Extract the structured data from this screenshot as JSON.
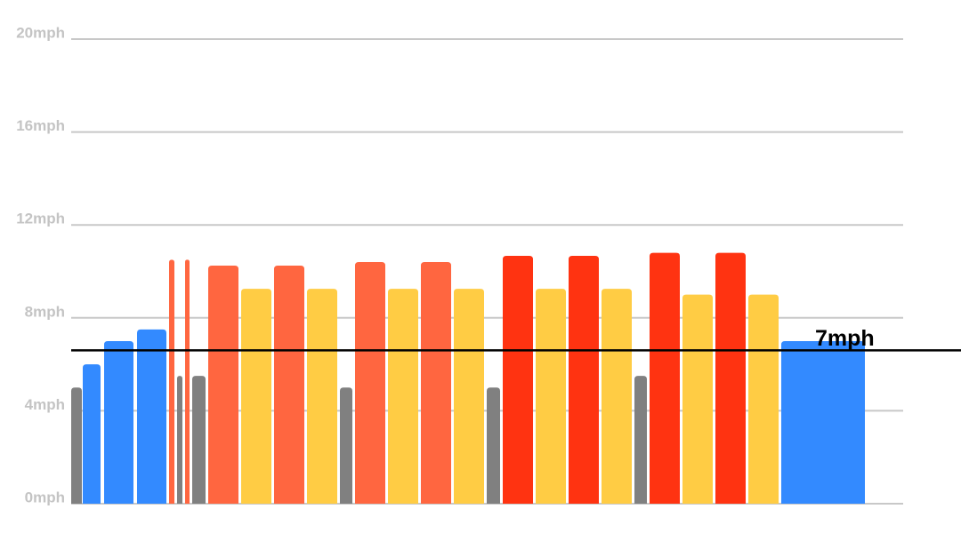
{
  "chart_data": {
    "type": "bar",
    "ylim": [
      0,
      20
    ],
    "yticks": [
      {
        "value": 0,
        "label": "0mph"
      },
      {
        "value": 4,
        "label": "4mph"
      },
      {
        "value": 8,
        "label": "8mph"
      },
      {
        "value": 12,
        "label": "12mph"
      },
      {
        "value": 16,
        "label": "16mph"
      },
      {
        "value": 20,
        "label": "20mph"
      }
    ],
    "xlim": [
      0,
      46.75
    ],
    "grid": true,
    "segments": [
      {
        "start": 0,
        "end": 0.6,
        "value": 5.0,
        "color": "#808080"
      },
      {
        "start": 0.65,
        "end": 1.65,
        "value": 6.0,
        "color": "#338aff"
      },
      {
        "start": 1.85,
        "end": 3.5,
        "value": 7.0,
        "color": "#338aff"
      },
      {
        "start": 3.7,
        "end": 5.35,
        "value": 7.5,
        "color": "#338aff"
      },
      {
        "start": 5.5,
        "end": 5.8,
        "value": 10.5,
        "color": "#ff6640"
      },
      {
        "start": 5.95,
        "end": 6.25,
        "value": 5.5,
        "color": "#808080"
      },
      {
        "start": 6.4,
        "end": 6.65,
        "value": 10.5,
        "color": "#ff6640"
      },
      {
        "start": 6.8,
        "end": 7.55,
        "value": 5.5,
        "color": "#808080"
      },
      {
        "start": 7.7,
        "end": 9.4,
        "value": 10.25,
        "color": "#ff6640"
      },
      {
        "start": 9.55,
        "end": 11.25,
        "value": 9.25,
        "color": "#ffcc44"
      },
      {
        "start": 11.4,
        "end": 13.1,
        "value": 10.25,
        "color": "#ff6640"
      },
      {
        "start": 13.25,
        "end": 14.95,
        "value": 9.25,
        "color": "#ffcc44"
      },
      {
        "start": 15.1,
        "end": 15.8,
        "value": 5.0,
        "color": "#808080"
      },
      {
        "start": 15.95,
        "end": 17.65,
        "value": 10.4,
        "color": "#ff6640"
      },
      {
        "start": 17.8,
        "end": 19.5,
        "value": 9.25,
        "color": "#ffcc44"
      },
      {
        "start": 19.65,
        "end": 21.35,
        "value": 10.4,
        "color": "#ff6640"
      },
      {
        "start": 21.5,
        "end": 23.2,
        "value": 9.25,
        "color": "#ffcc44"
      },
      {
        "start": 23.35,
        "end": 24.1,
        "value": 5.0,
        "color": "#808080"
      },
      {
        "start": 24.25,
        "end": 25.95,
        "value": 10.67,
        "color": "#ff3311"
      },
      {
        "start": 26.1,
        "end": 27.8,
        "value": 9.25,
        "color": "#ffcc44"
      },
      {
        "start": 27.95,
        "end": 29.65,
        "value": 10.67,
        "color": "#ff3311"
      },
      {
        "start": 29.8,
        "end": 31.5,
        "value": 9.25,
        "color": "#ffcc44"
      },
      {
        "start": 31.65,
        "end": 32.35,
        "value": 5.5,
        "color": "#808080"
      },
      {
        "start": 32.5,
        "end": 34.2,
        "value": 10.8,
        "color": "#ff3311"
      },
      {
        "start": 34.35,
        "end": 36.05,
        "value": 9.0,
        "color": "#ffcc44"
      },
      {
        "start": 36.2,
        "end": 37.9,
        "value": 10.8,
        "color": "#ff3311"
      },
      {
        "start": 38.05,
        "end": 39.75,
        "value": 9.0,
        "color": "#ffcc44"
      },
      {
        "start": 39.9,
        "end": 44.6,
        "value": 7.0,
        "color": "#338aff"
      }
    ],
    "reference_line": {
      "value": 6.6,
      "label": "7mph",
      "color": "#000000"
    }
  }
}
